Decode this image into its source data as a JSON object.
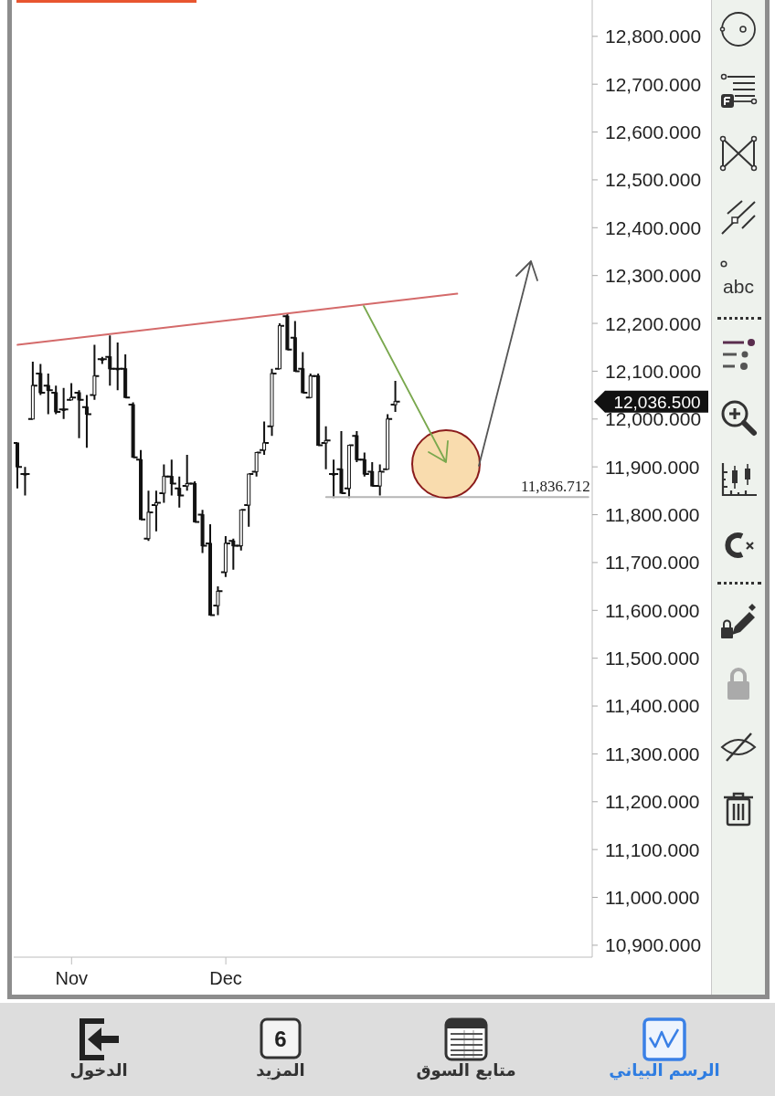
{
  "chart_data": {
    "type": "candlestick",
    "color": "#111111",
    "categories": [
      null,
      null,
      null,
      null,
      null,
      null,
      null,
      "Nov",
      null,
      null,
      null,
      null,
      null,
      null,
      null,
      null,
      null,
      null,
      null,
      null,
      null,
      null,
      null,
      null,
      null,
      null,
      null,
      "Dec",
      null,
      null,
      null,
      null,
      null,
      null,
      null,
      null,
      null,
      null,
      null,
      null,
      null,
      null,
      null,
      null,
      null,
      null,
      null,
      null,
      null,
      null,
      null,
      null,
      null,
      null,
      null,
      null,
      null,
      null,
      null,
      null,
      null,
      null,
      null,
      null,
      null,
      null,
      null,
      null,
      null,
      null,
      null,
      null,
      null,
      null,
      null
    ],
    "ohlc": [
      [
        11950,
        11950,
        11855,
        11900
      ],
      [
        11885,
        11900,
        11840,
        11885
      ],
      [
        12000,
        12120,
        12000,
        12070
      ],
      [
        12095,
        12115,
        12050,
        12055
      ],
      [
        12070,
        12095,
        12010,
        12060
      ],
      [
        12055,
        12070,
        12010,
        12015
      ],
      [
        12020,
        12065,
        12000,
        12020
      ],
      [
        12040,
        12075,
        12040,
        12045
      ],
      [
        12055,
        12060,
        11960,
        12040
      ],
      [
        12025,
        12050,
        11940,
        12010
      ],
      [
        12050,
        12155,
        12040,
        12090
      ],
      [
        12125,
        12130,
        12115,
        12125
      ],
      [
        12130,
        12175,
        12070,
        12105
      ],
      [
        12105,
        12160,
        12060,
        12105
      ],
      [
        12105,
        12135,
        12045,
        12045
      ],
      [
        12030,
        12035,
        11920,
        11920
      ],
      [
        11915,
        11935,
        11790,
        11790
      ],
      [
        11750,
        11850,
        11745,
        11805
      ],
      [
        11820,
        11850,
        11765,
        11825
      ],
      [
        11845,
        11905,
        11825,
        11880
      ],
      [
        11880,
        11915,
        11840,
        11865
      ],
      [
        11855,
        11880,
        11815,
        11840
      ],
      [
        11860,
        11925,
        11850,
        11865
      ],
      [
        11865,
        11870,
        11785,
        11785
      ],
      [
        11800,
        11810,
        11720,
        11735
      ],
      [
        11740,
        11780,
        11590,
        11590
      ],
      [
        11610,
        11650,
        11590,
        11640
      ],
      [
        11680,
        11755,
        11670,
        11740
      ],
      [
        11745,
        11750,
        11685,
        11735
      ],
      [
        11735,
        11810,
        11725,
        11810
      ],
      [
        11820,
        11885,
        11775,
        11885
      ],
      [
        11890,
        11930,
        11880,
        11930
      ],
      [
        11935,
        11995,
        11925,
        11950
      ],
      [
        11985,
        12105,
        11965,
        12095
      ],
      [
        12105,
        12200,
        12105,
        12195
      ],
      [
        12215,
        12220,
        12145,
        12145
      ],
      [
        12170,
        12205,
        12100,
        12100
      ],
      [
        12105,
        12140,
        12055,
        12055
      ],
      [
        12045,
        12095,
        12045,
        12090
      ],
      [
        12090,
        12095,
        11945,
        11945
      ],
      [
        11950,
        11985,
        11895,
        11955
      ],
      [
        11885,
        11915,
        11835,
        11885
      ],
      [
        11895,
        11975,
        11845,
        11845
      ],
      [
        11855,
        11945,
        11835,
        11945
      ],
      [
        11965,
        11975,
        11910,
        11915
      ],
      [
        11915,
        11930,
        11880,
        11885
      ],
      [
        11890,
        11910,
        11860,
        11860
      ],
      [
        11860,
        11905,
        11840,
        11890
      ],
      [
        11895,
        12010,
        11895,
        12000
      ],
      [
        12030,
        12080,
        12015,
        12036.5
      ],
      null,
      null,
      null,
      null,
      null,
      null,
      null,
      null,
      null,
      null,
      null,
      null,
      null,
      null,
      null,
      null,
      null,
      null,
      null,
      null,
      null,
      null,
      null,
      null,
      null
    ],
    "series": [
      {
        "type": "line",
        "color": "#d46a6a",
        "values": [
          12155,
          null,
          null,
          null,
          null,
          null,
          null,
          null,
          null,
          null,
          null,
          null,
          null,
          null,
          null,
          null,
          null,
          null,
          null,
          null,
          null,
          null,
          null,
          null,
          null,
          null,
          null,
          null,
          null,
          null,
          null,
          null,
          null,
          null,
          null,
          null,
          null,
          null,
          null,
          null,
          null,
          null,
          null,
          null,
          null,
          null,
          null,
          null,
          null,
          null,
          null,
          null,
          null,
          null,
          null,
          null,
          null,
          12262,
          null,
          null,
          null,
          null,
          null,
          null,
          null,
          null,
          null,
          null,
          null,
          null,
          null,
          null,
          null,
          null,
          null
        ]
      },
      {
        "type": "line",
        "name": "11,836.712",
        "color": "#b5b5b5",
        "values": [
          null,
          null,
          null,
          null,
          null,
          null,
          null,
          null,
          null,
          null,
          null,
          null,
          null,
          null,
          null,
          null,
          null,
          null,
          null,
          null,
          null,
          null,
          null,
          null,
          null,
          null,
          null,
          null,
          null,
          null,
          null,
          null,
          null,
          null,
          null,
          null,
          null,
          null,
          null,
          null,
          11836.712,
          null,
          null,
          null,
          null,
          null,
          null,
          null,
          null,
          null,
          null,
          null,
          null,
          null,
          null,
          null,
          null,
          null,
          null,
          null,
          null,
          null,
          null,
          null,
          null,
          null,
          null,
          null,
          null,
          null,
          null,
          null,
          null,
          null,
          11836.712
        ]
      }
    ],
    "marker": "none",
    "ylim": [
      10875,
      12876
    ],
    "yticks": [
      {
        "value": 10900,
        "label": "10,900.000"
      },
      {
        "value": 11000,
        "label": "11,000.000"
      },
      {
        "value": 11100,
        "label": "11,100.000"
      },
      {
        "value": 11200,
        "label": "11,200.000"
      },
      {
        "value": 11300,
        "label": "11,300.000"
      },
      {
        "value": 11400,
        "label": "11,400.000"
      },
      {
        "value": 11500,
        "label": "11,500.000"
      },
      {
        "value": 11600,
        "label": "11,600.000"
      },
      {
        "value": 11700,
        "label": "11,700.000"
      },
      {
        "value": 11800,
        "label": "11,800.000"
      },
      {
        "value": 11900,
        "label": "11,900.000"
      },
      {
        "value": 12000,
        "label": "12,000.000"
      },
      {
        "value": 12100,
        "label": "12,100.000"
      },
      {
        "value": 12200,
        "label": "12,200.000"
      },
      {
        "value": 12300,
        "label": "12,300.000"
      },
      {
        "value": 12400,
        "label": "12,400.000"
      },
      {
        "value": 12500,
        "label": "12,500.000"
      },
      {
        "value": 12600,
        "label": "12,600.000"
      },
      {
        "value": 12700,
        "label": "12,700.000"
      },
      {
        "value": 12800,
        "label": "12,800.000"
      }
    ],
    "annotations": [
      "12,036.500",
      "abc",
      "6",
      "الرسم البياني",
      "متابع السوق",
      "المزيد",
      "الدخول"
    ]
  }
}
